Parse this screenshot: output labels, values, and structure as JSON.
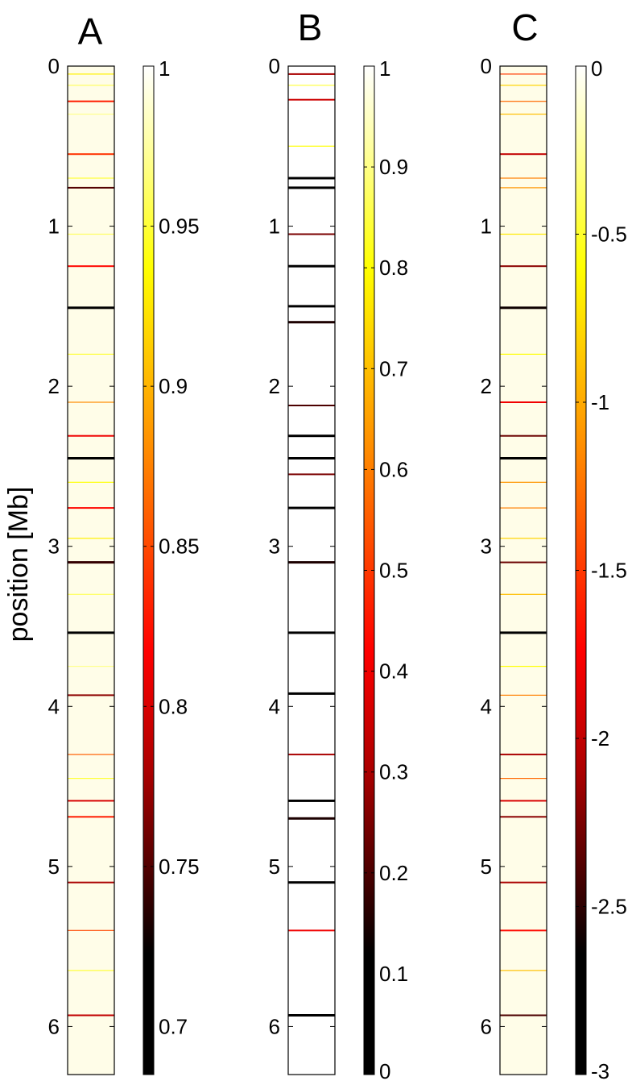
{
  "chart_data": [
    {
      "type": "heatmap",
      "panel_label": "A",
      "ylabel": "position [Mb]",
      "y_ticks": [
        0,
        1,
        2,
        3,
        4,
        5,
        6
      ],
      "ylim": [
        0,
        6.3
      ],
      "colorbar": {
        "ticks": [
          0.7,
          0.75,
          0.8,
          0.85,
          0.9,
          0.95,
          1
        ],
        "tick_labels": [
          "0.7",
          "0.75",
          "0.8",
          "0.85",
          "0.9",
          "0.95",
          "1"
        ],
        "range": [
          0.685,
          1
        ],
        "colormap": "hot"
      },
      "bands": [
        {
          "pos": 0.05,
          "value": 0.93
        },
        {
          "pos": 0.12,
          "value": 0.96
        },
        {
          "pos": 0.22,
          "value": 0.83
        },
        {
          "pos": 0.3,
          "value": 0.97
        },
        {
          "pos": 0.55,
          "value": 0.84
        },
        {
          "pos": 0.7,
          "value": 0.95
        },
        {
          "pos": 0.76,
          "value": 0.75
        },
        {
          "pos": 1.05,
          "value": 0.96
        },
        {
          "pos": 1.25,
          "value": 0.82
        },
        {
          "pos": 1.51,
          "value": 0.69
        },
        {
          "pos": 1.8,
          "value": 0.95
        },
        {
          "pos": 2.1,
          "value": 0.88
        },
        {
          "pos": 2.31,
          "value": 0.81
        },
        {
          "pos": 2.45,
          "value": 0.72
        },
        {
          "pos": 2.6,
          "value": 0.94
        },
        {
          "pos": 2.76,
          "value": 0.82
        },
        {
          "pos": 2.95,
          "value": 0.93
        },
        {
          "pos": 3.1,
          "value": 0.74
        },
        {
          "pos": 3.3,
          "value": 0.96
        },
        {
          "pos": 3.54,
          "value": 0.69
        },
        {
          "pos": 3.75,
          "value": 0.97
        },
        {
          "pos": 3.93,
          "value": 0.77
        },
        {
          "pos": 4.3,
          "value": 0.86
        },
        {
          "pos": 4.45,
          "value": 0.95
        },
        {
          "pos": 4.59,
          "value": 0.8
        },
        {
          "pos": 4.69,
          "value": 0.83
        },
        {
          "pos": 5.1,
          "value": 0.78
        },
        {
          "pos": 5.4,
          "value": 0.85
        },
        {
          "pos": 5.65,
          "value": 0.95
        },
        {
          "pos": 5.93,
          "value": 0.79
        }
      ]
    },
    {
      "type": "heatmap",
      "panel_label": "B",
      "ylabel": "",
      "y_ticks": [
        0,
        1,
        2,
        3,
        4,
        5,
        6
      ],
      "ylim": [
        0,
        6.3
      ],
      "colorbar": {
        "ticks": [
          0,
          0.1,
          0.2,
          0.3,
          0.4,
          0.5,
          0.6,
          0.7,
          0.8,
          0.9,
          1
        ],
        "tick_labels": [
          "0",
          "0.1",
          "0.2",
          "0.3",
          "0.4",
          "0.5",
          "0.6",
          "0.7",
          "0.8",
          "0.9",
          "1"
        ],
        "range": [
          0,
          1
        ],
        "colormap": "hot"
      },
      "bands": [
        {
          "pos": 0.05,
          "value": 0.3
        },
        {
          "pos": 0.12,
          "value": 0.85
        },
        {
          "pos": 0.21,
          "value": 0.35
        },
        {
          "pos": 0.5,
          "value": 0.8
        },
        {
          "pos": 0.7,
          "value": 0.05
        },
        {
          "pos": 0.76,
          "value": 0.02
        },
        {
          "pos": 1.05,
          "value": 0.25
        },
        {
          "pos": 1.25,
          "value": 0.1
        },
        {
          "pos": 1.5,
          "value": 0.01
        },
        {
          "pos": 1.6,
          "value": 0.15
        },
        {
          "pos": 2.12,
          "value": 0.2
        },
        {
          "pos": 2.31,
          "value": 0.1
        },
        {
          "pos": 2.45,
          "value": 0.01
        },
        {
          "pos": 2.55,
          "value": 0.25
        },
        {
          "pos": 2.76,
          "value": 0.05
        },
        {
          "pos": 3.1,
          "value": 0.15
        },
        {
          "pos": 3.54,
          "value": 0.01
        },
        {
          "pos": 3.92,
          "value": 0.02
        },
        {
          "pos": 4.3,
          "value": 0.3
        },
        {
          "pos": 4.59,
          "value": 0.05
        },
        {
          "pos": 4.7,
          "value": 0.15
        },
        {
          "pos": 5.1,
          "value": 0.05
        },
        {
          "pos": 5.4,
          "value": 0.4
        },
        {
          "pos": 5.93,
          "value": 0.12
        }
      ]
    },
    {
      "type": "heatmap",
      "panel_label": "C",
      "ylabel": "",
      "y_ticks": [
        0,
        1,
        2,
        3,
        4,
        5,
        6
      ],
      "ylim": [
        0,
        6.3
      ],
      "colorbar": {
        "ticks": [
          -3,
          -2.5,
          -2,
          -1.5,
          -1,
          -0.5,
          0
        ],
        "tick_labels": [
          "-3",
          "-2.5",
          "-2",
          "-1.5",
          "-1",
          "-0.5",
          "0"
        ],
        "range": [
          -3,
          0
        ],
        "colormap": "hot"
      },
      "bands": [
        {
          "pos": 0.05,
          "value": -1.5
        },
        {
          "pos": 0.12,
          "value": -0.8
        },
        {
          "pos": 0.22,
          "value": -1.3
        },
        {
          "pos": 0.3,
          "value": -0.9
        },
        {
          "pos": 0.55,
          "value": -2
        },
        {
          "pos": 0.7,
          "value": -1.2
        },
        {
          "pos": 0.76,
          "value": -1.1
        },
        {
          "pos": 1.05,
          "value": -0.7
        },
        {
          "pos": 1.25,
          "value": -2.2
        },
        {
          "pos": 1.51,
          "value": -2.6
        },
        {
          "pos": 1.8,
          "value": -0.6
        },
        {
          "pos": 2.1,
          "value": -1.8
        },
        {
          "pos": 2.31,
          "value": -2.3
        },
        {
          "pos": 2.45,
          "value": -2.7
        },
        {
          "pos": 2.6,
          "value": -1.1
        },
        {
          "pos": 2.76,
          "value": -1.2
        },
        {
          "pos": 2.95,
          "value": -0.8
        },
        {
          "pos": 3.1,
          "value": -2.3
        },
        {
          "pos": 3.3,
          "value": -0.9
        },
        {
          "pos": 3.54,
          "value": -2.8
        },
        {
          "pos": 3.75,
          "value": -0.6
        },
        {
          "pos": 3.93,
          "value": -1.2
        },
        {
          "pos": 4.3,
          "value": -2.1
        },
        {
          "pos": 4.45,
          "value": -1.3
        },
        {
          "pos": 4.59,
          "value": -1.9
        },
        {
          "pos": 4.69,
          "value": -2.2
        },
        {
          "pos": 5.1,
          "value": -2.1
        },
        {
          "pos": 5.4,
          "value": -1.7
        },
        {
          "pos": 5.65,
          "value": -0.9
        },
        {
          "pos": 5.93,
          "value": -2.4
        }
      ]
    }
  ]
}
